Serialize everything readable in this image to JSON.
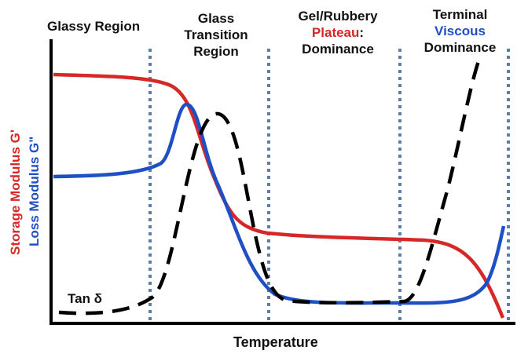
{
  "regions": {
    "glassy": "Glassy Region",
    "glass_transition_1": "Glass",
    "glass_transition_2": "Transition",
    "glass_transition_3": "Region",
    "rubbery_1": "Gel/Rubbery",
    "rubbery_2": "Plateau",
    "rubbery_2_suffix": ":",
    "rubbery_3": "Dominance",
    "terminal_1": "Terminal",
    "terminal_2": "Viscous",
    "terminal_3": "Dominance"
  },
  "axes": {
    "x_label": "Temperature",
    "y_label_storage": "Storage Modulus G'",
    "y_label_loss": "Loss Modulus G\""
  },
  "series": {
    "tan_delta": "Tan δ"
  },
  "colors": {
    "storage": "#d62828",
    "loss": "#1f4fc4",
    "tan_delta": "#000000",
    "divider": "#5b7fa6"
  }
}
